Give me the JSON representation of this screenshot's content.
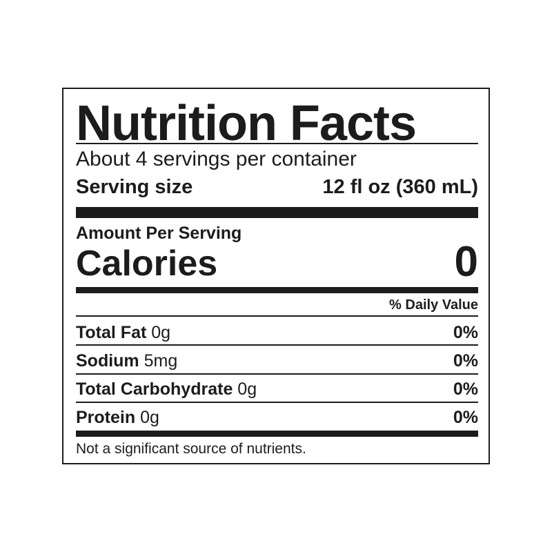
{
  "title": "Nutrition Facts",
  "servings_per_container": "About 4 servings per container",
  "serving_size_label": "Serving size",
  "serving_size_value": "12 fl oz (360 mL)",
  "amount_per_serving": "Amount Per Serving",
  "calories_label": "Calories",
  "calories_value": "0",
  "daily_value_header": "% Daily Value",
  "nutrients": [
    {
      "name": "Total Fat",
      "amount": "0g",
      "dv": "0%"
    },
    {
      "name": "Sodium",
      "amount": "5mg",
      "dv": "0%"
    },
    {
      "name": "Total Carbohydrate",
      "amount": "0g",
      "dv": "0%"
    },
    {
      "name": "Protein",
      "amount": "0g",
      "dv": "0%"
    }
  ],
  "footnote": "Not a significant source of nutrients."
}
